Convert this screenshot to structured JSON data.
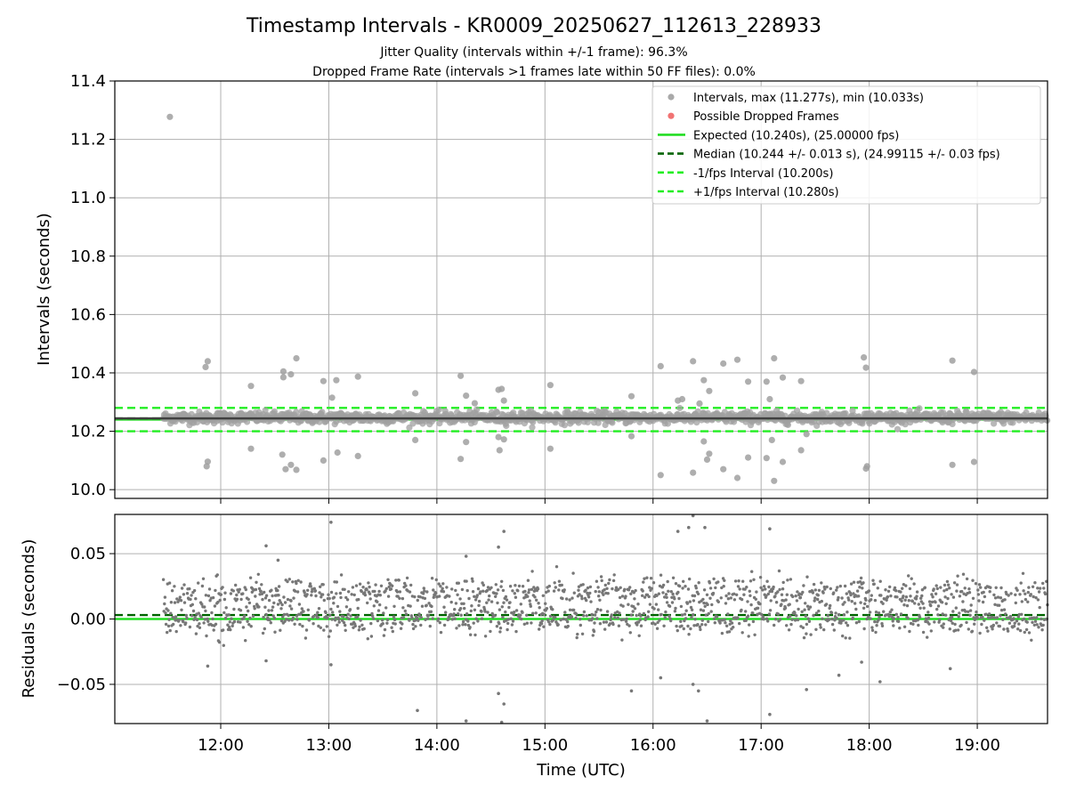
{
  "chart_data": {
    "title": "Timestamp Intervals - KR0009_20250627_112613_228933",
    "subtitle_lines": [
      "Jitter Quality (intervals within +/-1 frame): 96.3%",
      "Dropped Frame Rate (intervals >1 frames late within 50 FF files): 0.0%"
    ],
    "panels": [
      {
        "id": "intervals",
        "type": "scatter",
        "ylabel": "Intervals (seconds)",
        "ylim": [
          9.97,
          11.4
        ],
        "yticks": [
          10.0,
          10.2,
          10.4,
          10.6,
          10.8,
          11.0,
          11.2,
          11.4
        ],
        "ytick_labels": [
          "10.0",
          "10.2",
          "10.4",
          "10.6",
          "10.8",
          "11.0",
          "11.2",
          "11.4"
        ],
        "grid": true,
        "legend_position": "top-right",
        "legend": [
          {
            "label": "Intervals, max (11.277s), min (10.033s)",
            "kind": "marker",
            "color": "#a0a0a0"
          },
          {
            "label": "Possible Dropped Frames",
            "kind": "marker",
            "color": "#f06464"
          },
          {
            "label": "Expected (10.240s), (25.00000 fps)",
            "kind": "line",
            "style": "solid",
            "color": "#22dd22"
          },
          {
            "label": "Median (10.244 +/- 0.013 s), (24.99115 +/- 0.03 fps)",
            "kind": "line",
            "style": "dashed",
            "color": "#006400"
          },
          {
            "label": "-1/fps Interval (10.200s)",
            "kind": "line",
            "style": "dashed",
            "color": "#22ee22"
          },
          {
            "label": "+1/fps Interval (10.280s)",
            "kind": "line",
            "style": "dashed",
            "color": "#22ee22"
          }
        ],
        "reference_lines": [
          {
            "name": "expected",
            "y": 10.24,
            "style": "solid",
            "color": "#22dd22"
          },
          {
            "name": "median",
            "y": 10.244,
            "style": "dashed",
            "color": "#006400"
          },
          {
            "name": "minus_1fps",
            "y": 10.2,
            "style": "dashed",
            "color": "#22ee22"
          },
          {
            "name": "plus_1fps",
            "y": 10.28,
            "style": "dashed",
            "color": "#22ee22"
          }
        ],
        "band": {
          "center": 10.247,
          "spread": 0.018,
          "x_start": 11.47,
          "x_end": 19.65
        },
        "outliers": [
          [
            11.53,
            11.277
          ],
          [
            11.86,
            10.42
          ],
          [
            11.88,
            10.44
          ],
          [
            11.88,
            10.096
          ],
          [
            11.87,
            10.08
          ],
          [
            12.28,
            10.355
          ],
          [
            12.28,
            10.14
          ],
          [
            12.58,
            10.405
          ],
          [
            12.58,
            10.385
          ],
          [
            12.57,
            10.12
          ],
          [
            12.6,
            10.07
          ],
          [
            12.65,
            10.395
          ],
          [
            12.65,
            10.085
          ],
          [
            12.7,
            10.45
          ],
          [
            12.7,
            10.068
          ],
          [
            12.95,
            10.372
          ],
          [
            12.95,
            10.1
          ],
          [
            13.03,
            10.315
          ],
          [
            13.07,
            10.375
          ],
          [
            13.08,
            10.127
          ],
          [
            13.27,
            10.387
          ],
          [
            13.27,
            10.115
          ],
          [
            13.8,
            10.33
          ],
          [
            13.8,
            10.17
          ],
          [
            14.22,
            10.39
          ],
          [
            14.22,
            10.105
          ],
          [
            14.27,
            10.322
          ],
          [
            14.27,
            10.163
          ],
          [
            14.35,
            10.296
          ],
          [
            14.57,
            10.342
          ],
          [
            14.57,
            10.18
          ],
          [
            14.58,
            10.135
          ],
          [
            14.62,
            10.305
          ],
          [
            14.62,
            10.172
          ],
          [
            14.6,
            10.345
          ],
          [
            15.05,
            10.358
          ],
          [
            15.05,
            10.14
          ],
          [
            15.8,
            10.32
          ],
          [
            15.8,
            10.183
          ],
          [
            16.07,
            10.423
          ],
          [
            16.07,
            10.05
          ],
          [
            16.23,
            10.305
          ],
          [
            16.27,
            10.31
          ],
          [
            16.37,
            10.44
          ],
          [
            16.37,
            10.058
          ],
          [
            16.47,
            10.375
          ],
          [
            16.47,
            10.165
          ],
          [
            16.52,
            10.338
          ],
          [
            16.52,
            10.123
          ],
          [
            16.5,
            10.103
          ],
          [
            16.43,
            10.295
          ],
          [
            16.65,
            10.432
          ],
          [
            16.65,
            10.07
          ],
          [
            16.78,
            10.445
          ],
          [
            16.78,
            10.04
          ],
          [
            16.88,
            10.37
          ],
          [
            16.88,
            10.11
          ],
          [
            17.05,
            10.37
          ],
          [
            17.08,
            10.31
          ],
          [
            17.12,
            10.45
          ],
          [
            17.12,
            10.03
          ],
          [
            17.2,
            10.384
          ],
          [
            17.2,
            10.095
          ],
          [
            17.1,
            10.17
          ],
          [
            17.05,
            10.108
          ],
          [
            17.37,
            10.372
          ],
          [
            17.37,
            10.135
          ],
          [
            17.42,
            10.19
          ],
          [
            17.95,
            10.453
          ],
          [
            17.97,
            10.418
          ],
          [
            17.97,
            10.072
          ],
          [
            17.98,
            10.08
          ],
          [
            18.77,
            10.442
          ],
          [
            18.77,
            10.085
          ],
          [
            18.97,
            10.403
          ],
          [
            18.97,
            10.095
          ]
        ]
      },
      {
        "id": "residuals",
        "type": "scatter",
        "ylabel": "Residuals (seconds)",
        "ylim": [
          -0.08,
          0.08
        ],
        "yticks": [
          -0.05,
          0.0,
          0.05
        ],
        "ytick_labels": [
          "−0.05",
          "0.00",
          "0.05"
        ],
        "grid": true,
        "reference_lines": [
          {
            "name": "zero",
            "y": 0.0,
            "style": "solid",
            "color": "#22dd22"
          },
          {
            "name": "median_offset",
            "y": 0.003,
            "style": "dashed",
            "color": "#006400"
          }
        ],
        "clusters": [
          {
            "center": 0.02,
            "spread": 0.006
          },
          {
            "center": 0.0,
            "spread": 0.006
          }
        ],
        "outliers": [
          [
            12.42,
            0.056
          ],
          [
            12.53,
            0.045
          ],
          [
            13.02,
            0.074
          ],
          [
            13.02,
            -0.035
          ],
          [
            11.88,
            -0.036
          ],
          [
            12.42,
            -0.032
          ],
          [
            13.82,
            -0.07
          ],
          [
            14.27,
            0.048
          ],
          [
            14.27,
            -0.078
          ],
          [
            14.57,
            0.055
          ],
          [
            14.62,
            0.067
          ],
          [
            14.57,
            -0.057
          ],
          [
            14.6,
            -0.079
          ],
          [
            14.62,
            -0.065
          ],
          [
            15.8,
            -0.055
          ],
          [
            16.07,
            -0.045
          ],
          [
            16.23,
            0.067
          ],
          [
            16.33,
            0.07
          ],
          [
            16.37,
            0.079
          ],
          [
            16.48,
            0.07
          ],
          [
            16.37,
            -0.05
          ],
          [
            16.42,
            -0.055
          ],
          [
            16.5,
            -0.078
          ],
          [
            17.08,
            0.069
          ],
          [
            17.08,
            -0.073
          ],
          [
            17.42,
            -0.054
          ],
          [
            17.72,
            -0.043
          ],
          [
            17.93,
            -0.033
          ],
          [
            18.1,
            -0.048
          ],
          [
            18.75,
            -0.038
          ]
        ]
      }
    ],
    "xlabel": "Time (UTC)",
    "xlim": [
      11.02,
      19.65
    ],
    "xticks": [
      12,
      13,
      14,
      15,
      16,
      17,
      18,
      19
    ],
    "xtick_labels": [
      "12:00",
      "13:00",
      "14:00",
      "15:00",
      "16:00",
      "17:00",
      "18:00",
      "19:00"
    ],
    "colors": {
      "intervals": "#a0a0a0",
      "residuals": "#777777",
      "grid": "#b0b0b0"
    }
  }
}
